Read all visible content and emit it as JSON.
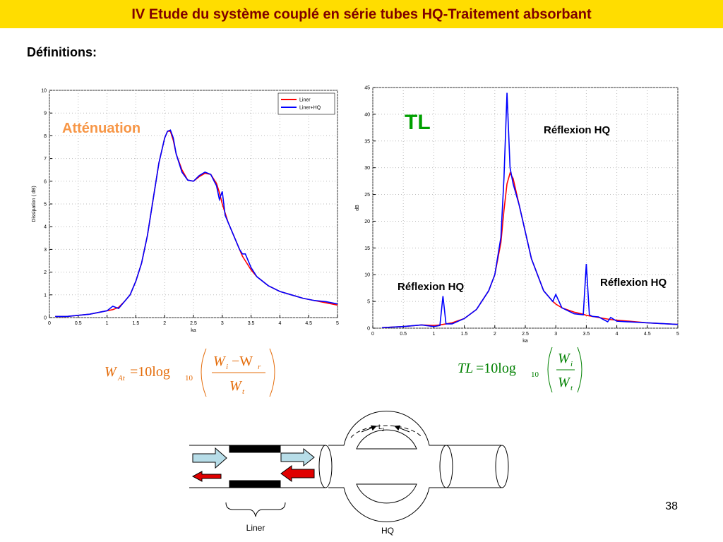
{
  "title": "IV Etude du système couplé en série tubes HQ-Traitement absorbant",
  "section": "Définitions:",
  "page_number": "38",
  "chart_data": [
    {
      "type": "line",
      "xlabel": "ka",
      "ylabel": "Dissipation ( dB)",
      "xlim": [
        0,
        5
      ],
      "xticks": [
        0,
        0.5,
        1,
        1.5,
        2,
        2.5,
        3,
        3.5,
        4,
        4.5,
        5
      ],
      "ylim": [
        0,
        10
      ],
      "yticks": [
        0,
        1,
        2,
        3,
        4,
        5,
        6,
        7,
        8,
        9,
        10
      ],
      "grid": true,
      "legend": "upper right",
      "x": [
        0.1,
        0.3,
        0.5,
        0.7,
        0.9,
        1.0,
        1.1,
        1.2,
        1.3,
        1.4,
        1.5,
        1.6,
        1.7,
        1.8,
        1.9,
        2.0,
        2.05,
        2.1,
        2.15,
        2.2,
        2.3,
        2.4,
        2.5,
        2.6,
        2.7,
        2.8,
        2.9,
        2.95,
        3.0,
        3.05,
        3.1,
        3.2,
        3.3,
        3.35,
        3.4,
        3.5,
        3.6,
        3.8,
        4.0,
        4.2,
        4.4,
        4.6,
        4.8,
        5.0
      ],
      "series": [
        {
          "name": "Liner",
          "color": "#ff0000",
          "values": [
            0.05,
            0.05,
            0.1,
            0.15,
            0.25,
            0.3,
            0.35,
            0.45,
            0.7,
            1.0,
            1.6,
            2.4,
            3.6,
            5.2,
            6.8,
            7.9,
            8.2,
            8.2,
            7.8,
            7.2,
            6.5,
            6.05,
            6.0,
            6.2,
            6.35,
            6.3,
            5.9,
            5.5,
            5.0,
            4.6,
            4.2,
            3.6,
            3.0,
            2.7,
            2.5,
            2.1,
            1.8,
            1.4,
            1.15,
            1.0,
            0.85,
            0.75,
            0.65,
            0.55
          ]
        },
        {
          "name": "Liner+HQ",
          "color": "#0000ff",
          "values": [
            0.05,
            0.05,
            0.1,
            0.15,
            0.25,
            0.3,
            0.5,
            0.4,
            0.7,
            1.0,
            1.6,
            2.4,
            3.6,
            5.2,
            6.8,
            7.9,
            8.2,
            8.25,
            7.9,
            7.2,
            6.4,
            6.05,
            6.0,
            6.25,
            6.4,
            6.3,
            5.8,
            5.2,
            5.55,
            4.5,
            4.2,
            3.6,
            3.0,
            2.8,
            2.8,
            2.2,
            1.8,
            1.4,
            1.15,
            1.0,
            0.85,
            0.75,
            0.7,
            0.6
          ]
        }
      ],
      "annotations": [
        {
          "text": "Atténuation",
          "color": "#f79646"
        }
      ]
    },
    {
      "type": "line",
      "xlabel": "ka",
      "ylabel": "dB",
      "xlim": [
        0,
        5
      ],
      "xticks": [
        0,
        0.5,
        1,
        1.5,
        2,
        2.5,
        3,
        3.5,
        4,
        4.5,
        5
      ],
      "ylim": [
        0,
        45
      ],
      "yticks": [
        0,
        5,
        10,
        15,
        20,
        25,
        30,
        35,
        40,
        45
      ],
      "grid": true,
      "x": [
        0.15,
        0.5,
        0.8,
        1.0,
        1.1,
        1.15,
        1.2,
        1.3,
        1.5,
        1.7,
        1.9,
        2.0,
        2.1,
        2.15,
        2.2,
        2.25,
        2.3,
        2.4,
        2.5,
        2.6,
        2.8,
        2.95,
        3.0,
        3.1,
        3.3,
        3.45,
        3.5,
        3.55,
        3.6,
        3.7,
        3.8,
        3.85,
        3.9,
        4.0,
        4.5,
        5.0
      ],
      "series": [
        {
          "name": "Liner",
          "color": "#ff0000",
          "values": [
            0.1,
            0.3,
            0.6,
            0.5,
            0.6,
            0.7,
            0.8,
            1.0,
            1.8,
            3.5,
            7,
            10,
            16,
            22,
            27,
            29,
            28,
            23,
            18,
            13,
            7,
            5,
            4.5,
            3.8,
            3,
            2.6,
            2.4,
            2.3,
            2.2,
            2,
            1.8,
            1.7,
            1.6,
            1.5,
            1.0,
            0.7
          ]
        },
        {
          "name": "Liner+HQ",
          "color": "#0000ff",
          "values": [
            0.1,
            0.3,
            0.6,
            0.3,
            0.5,
            6,
            0.8,
            0.8,
            1.8,
            3.5,
            7,
            10,
            17,
            28,
            44,
            30,
            27,
            23,
            18,
            13,
            7,
            5,
            6.3,
            3.8,
            2.7,
            2.5,
            12,
            2.5,
            2.2,
            2.1,
            1.5,
            1.2,
            2.0,
            1.3,
            1.0,
            0.7
          ]
        }
      ],
      "annotations": [
        {
          "text": "TL",
          "color": "#00a000"
        },
        {
          "text": "Réflexion HQ",
          "color": "#000000"
        },
        {
          "text": "Réflexion HQ",
          "color": "#000000"
        },
        {
          "text": "Réflexion HQ",
          "color": "#000000"
        }
      ]
    }
  ],
  "formula_attenuation": {
    "lhs": "W",
    "lhs_sub": "At",
    "eq": "=10log",
    "log_base": "10",
    "num": "W",
    "num_sub1": "i",
    "minus": "−W",
    "num_sub2": "r",
    "den": "W",
    "den_sub": "t"
  },
  "formula_tl": {
    "lhs": "TL",
    "eq": "=10log",
    "log_base": "10",
    "num": "W",
    "num_sub": "i",
    "den": "W",
    "den_sub": "t"
  },
  "diagram": {
    "l_label": "L",
    "l_sub": "2",
    "liner_label": "Liner",
    "hq_label": "HQ"
  }
}
